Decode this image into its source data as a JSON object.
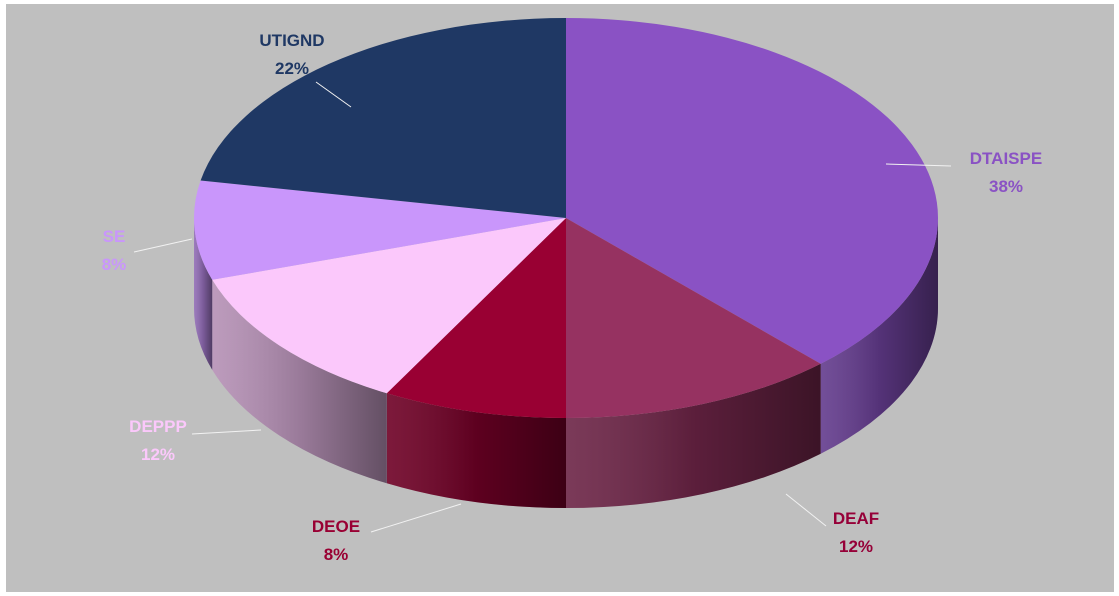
{
  "chart_data": {
    "type": "pie",
    "style": "3d",
    "title": "",
    "legend": "none",
    "start_angle_deg": 0,
    "direction": "clockwise",
    "background": "#bfbfbf",
    "slices": [
      {
        "label": "DTAISPE",
        "value": 38,
        "value_label": "38%",
        "color": "#8a52c4",
        "label_color": "#8a52c4"
      },
      {
        "label": "DEAF",
        "value": 12,
        "value_label": "12%",
        "color": "#963261",
        "label_color": "#960038"
      },
      {
        "label": "DEOE",
        "value": 8,
        "value_label": "8%",
        "color": "#990033",
        "label_color": "#990033"
      },
      {
        "label": "DEPPP",
        "value": 12,
        "value_label": "12%",
        "color": "#fbc8fb",
        "label_color": "#fbc8fb"
      },
      {
        "label": "SE",
        "value": 8,
        "value_label": "8%",
        "color": "#c996fb",
        "label_color": "#c996fb"
      },
      {
        "label": "UTIGND",
        "value": 22,
        "value_label": "22%",
        "color": "#1f3864",
        "label_color": "#1f3864"
      }
    ]
  }
}
